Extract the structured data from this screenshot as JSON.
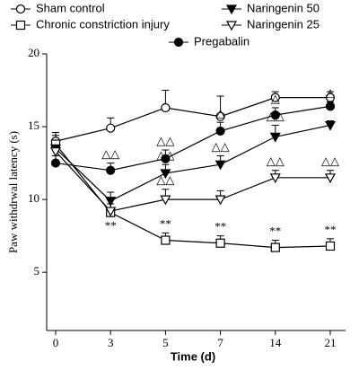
{
  "chart_data": {
    "type": "line",
    "x_label": "Time (d)",
    "y_label": "Paw withdrwal latency (s)",
    "categories": [
      "0",
      "3",
      "5",
      "7",
      "14",
      "21"
    ],
    "ylim": [
      1,
      20
    ],
    "yticks": [
      5,
      10,
      15,
      20
    ],
    "series": [
      {
        "name": "Sham control",
        "color": "#000000",
        "marker": "circle-open",
        "values": [
          14.0,
          14.9,
          16.3,
          15.7,
          17.0,
          17.0
        ],
        "errors": [
          0.6,
          0.7,
          1.2,
          1.4,
          0.4,
          0.4
        ],
        "significance": [
          null,
          null,
          null,
          null,
          null,
          null
        ]
      },
      {
        "name": "Chronic constriction injury",
        "color": "#000000",
        "marker": "square-open",
        "values": [
          13.8,
          9.1,
          7.2,
          7.0,
          6.7,
          6.8
        ],
        "errors": [
          0.6,
          0.6,
          0.5,
          0.5,
          0.5,
          0.5
        ],
        "significance": [
          null,
          "**",
          "**",
          "**",
          "**",
          "**"
        ]
      },
      {
        "name": "Naringenin 50",
        "color": "#000000",
        "marker": "triangle-down-filled",
        "values": [
          13.5,
          9.9,
          11.8,
          12.4,
          14.3,
          15.1
        ],
        "errors": [
          0.6,
          0.6,
          0.6,
          0.6,
          0.8,
          0.3
        ],
        "significance": [
          null,
          null,
          "△△",
          "△△",
          "△△",
          null
        ]
      },
      {
        "name": "Naringenin 25",
        "color": "#000000",
        "marker": "triangle-down-open",
        "values": [
          13.3,
          9.2,
          10.0,
          10.0,
          11.5,
          11.5
        ],
        "errors": [
          0.6,
          0.9,
          0.7,
          0.6,
          0.5,
          0.5
        ],
        "significance": [
          null,
          null,
          "△△",
          null,
          "△△",
          "△△"
        ]
      },
      {
        "name": "Pregabalin",
        "color": "#000000",
        "marker": "circle-filled",
        "values": [
          12.5,
          12.0,
          12.8,
          14.7,
          15.8,
          16.4
        ],
        "errors": [
          0.5,
          0.5,
          0.6,
          0.6,
          0.5,
          0.3
        ],
        "significance": [
          null,
          "△△",
          "△△",
          "△",
          "△",
          "△"
        ]
      }
    ]
  }
}
